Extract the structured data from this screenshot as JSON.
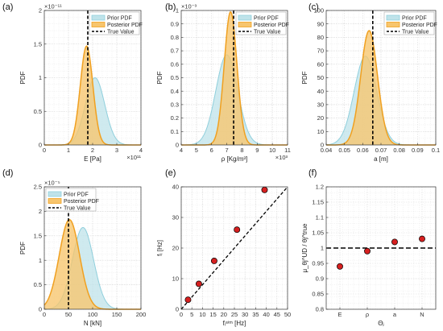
{
  "colors": {
    "prior_fill": "#bfe3ea",
    "prior_line": "#8fcfdc",
    "posterior_fill": "#f7c56d",
    "posterior_line": "#f0a020",
    "true_line": "#000000",
    "marker": "#d62020",
    "grid": "#d9d9d9"
  },
  "chart_data": [
    {
      "letter": "(a)",
      "type": "area",
      "xlabel": "E [Pa]",
      "ylabel": "PDF",
      "xlim": [
        0,
        4
      ],
      "ylim": [
        0,
        2
      ],
      "xticks": [
        0,
        1,
        2,
        3,
        4
      ],
      "yticks": [
        0,
        0.5,
        1,
        1.5,
        2
      ],
      "xexp": "×10¹¹",
      "yexp": "×10⁻¹¹",
      "legend": [
        "Prior PDF",
        "Posterior PDF",
        "True Value"
      ],
      "legend_pos": "top-right",
      "series": [
        {
          "name": "Prior PDF",
          "kind": "gauss",
          "mu": 2.1,
          "sigma": 0.4,
          "peak": 1.0
        },
        {
          "name": "Posterior PDF",
          "kind": "gauss",
          "mu": 1.75,
          "sigma": 0.26,
          "peak": 1.47
        }
      ],
      "true_value": 1.8
    },
    {
      "letter": "(b)",
      "type": "area",
      "xlabel": "ρ [Kg/m³]",
      "ylabel": "PDF",
      "xlim": [
        4,
        11
      ],
      "ylim": [
        0,
        1
      ],
      "xticks": [
        4,
        5,
        6,
        7,
        8,
        9,
        10,
        11
      ],
      "yticks": [
        0,
        0.1,
        0.2,
        0.3,
        0.4,
        0.5,
        0.6,
        0.7,
        0.8,
        0.9,
        1
      ],
      "xexp": "×10³",
      "yexp": "×10⁻³",
      "legend": [
        "Prior PDF",
        "Posterior PDF",
        "True Value"
      ],
      "legend_pos": "top-right",
      "series": [
        {
          "name": "Prior PDF",
          "kind": "gauss",
          "mu": 7.0,
          "sigma": 0.72,
          "peak": 0.67
        },
        {
          "name": "Posterior PDF",
          "kind": "gauss",
          "mu": 7.25,
          "sigma": 0.42,
          "peak": 0.99
        }
      ],
      "true_value": 7.45
    },
    {
      "letter": "(c)",
      "type": "area",
      "xlabel": "a  [m]",
      "ylabel": "PDF",
      "xlim": [
        0.04,
        0.1
      ],
      "ylim": [
        0,
        100
      ],
      "xticks": [
        0.04,
        0.05,
        0.06,
        0.07,
        0.08,
        0.09,
        0.1
      ],
      "yticks": [
        0,
        10,
        20,
        30,
        40,
        50,
        60,
        70,
        80,
        90,
        100
      ],
      "xexp": "",
      "yexp": "",
      "legend": [
        "Prior PDF",
        "Posterior PDF",
        "True Value"
      ],
      "legend_pos": "top-right",
      "series": [
        {
          "name": "Prior PDF",
          "kind": "gauss",
          "mu": 0.0615,
          "sigma": 0.0062,
          "peak": 66
        },
        {
          "name": "Posterior PDF",
          "kind": "gauss",
          "mu": 0.0635,
          "sigma": 0.0046,
          "peak": 85
        }
      ],
      "true_value": 0.0655
    },
    {
      "letter": "(d)",
      "type": "area",
      "xlabel": "N [kN]",
      "ylabel": "PDF",
      "xlim": [
        0,
        200
      ],
      "ylim": [
        0,
        2.5
      ],
      "xticks": [
        0,
        50,
        100,
        150,
        200
      ],
      "yticks": [
        0,
        0.5,
        1,
        1.5,
        2,
        2.5
      ],
      "xexp": "",
      "yexp": "×10⁻⁵",
      "legend": [
        "Prior PDF",
        "Posterior PDF",
        "True Value"
      ],
      "legend_pos": "top-left",
      "series": [
        {
          "name": "Prior PDF",
          "kind": "gauss",
          "mu": 80,
          "sigma": 22,
          "peak": 1.67
        },
        {
          "name": "Posterior PDF",
          "kind": "gauss",
          "mu": 52,
          "sigma": 21,
          "peak": 1.83
        }
      ],
      "true_value": 50
    },
    {
      "letter": "(e)",
      "type": "scatter",
      "xlabel": "fᵢˢⁱᵐ [Hz]",
      "ylabel": "fᵢ [Hz]",
      "xlim": [
        0,
        50
      ],
      "ylim": [
        0,
        40
      ],
      "xticks": [
        0,
        5,
        10,
        15,
        20,
        25,
        30,
        35,
        40,
        45,
        50
      ],
      "yticks": [
        0,
        10,
        20,
        30,
        40
      ],
      "xexp": "",
      "yexp": "",
      "legend": [],
      "legend_pos": "",
      "x": [
        3.2,
        8.3,
        15.5,
        26.2,
        39.2
      ],
      "y": [
        3.1,
        8.3,
        15.8,
        26.0,
        39.0
      ],
      "ref_line": [
        [
          0,
          0
        ],
        [
          50,
          50
        ]
      ]
    },
    {
      "letter": "(f)",
      "type": "scatter",
      "xlabel": "Θⱼ",
      "ylabel": "μ_θj^UD / θj^true",
      "xlim": [
        0.5,
        4.5
      ],
      "ylim": [
        0.8,
        1.2
      ],
      "xticks": [
        1,
        2,
        3,
        4
      ],
      "xticklabels": [
        "E",
        "ρ",
        "a",
        "N"
      ],
      "yticks": [
        0.8,
        0.85,
        0.9,
        0.95,
        1,
        1.05,
        1.1,
        1.15,
        1.2
      ],
      "xexp": "",
      "yexp": "",
      "legend": [],
      "legend_pos": "",
      "x": [
        1,
        2,
        3,
        4
      ],
      "y": [
        0.94,
        0.99,
        1.02,
        1.03
      ],
      "hline": 1.0
    }
  ]
}
